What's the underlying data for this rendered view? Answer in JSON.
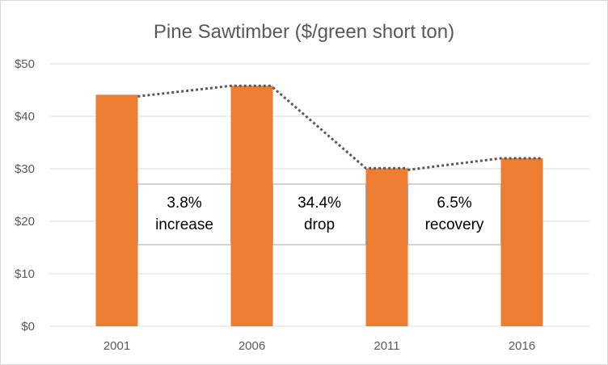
{
  "chart_data": {
    "type": "bar",
    "title": "Pine Sawtimber ($/green short ton)",
    "categories": [
      "2001",
      "2006",
      "2011",
      "2016"
    ],
    "values": [
      44.1,
      45.8,
      30.1,
      32.0
    ],
    "ylim": [
      0,
      50
    ],
    "yticks": [
      0,
      10,
      20,
      30,
      40,
      50
    ],
    "ytick_labels": [
      "$0",
      "$10",
      "$20",
      "$30",
      "$40",
      "$50"
    ],
    "grid": true,
    "legend": "none",
    "bar_color": "#ED7D31",
    "grid_color": "#D9D9D9",
    "connector_color": "#595959",
    "annotations": [
      {
        "between": [
          "2001",
          "2006"
        ],
        "lines": [
          "3.8%",
          "increase"
        ]
      },
      {
        "between": [
          "2006",
          "2011"
        ],
        "lines": [
          "34.4%",
          "drop"
        ]
      },
      {
        "between": [
          "2011",
          "2016"
        ],
        "lines": [
          "6.5%",
          "recovery"
        ]
      }
    ]
  }
}
